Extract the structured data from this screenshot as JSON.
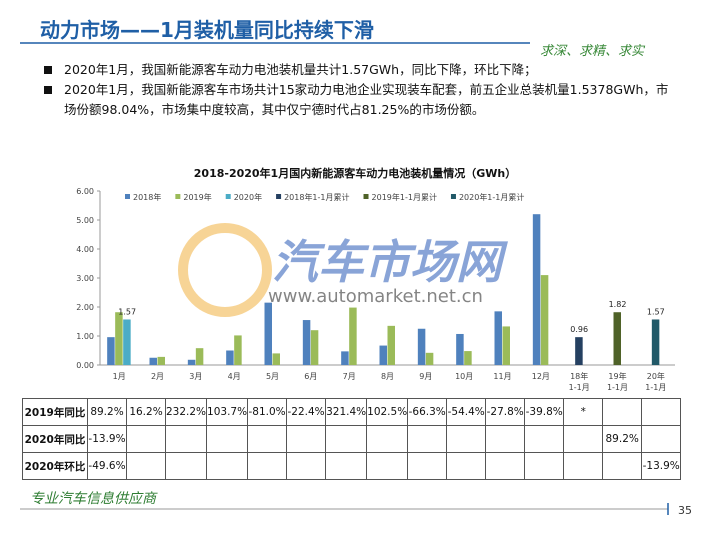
{
  "header": {
    "title": "动力市场——1月装机量同比持续下滑",
    "slogan": "求深、求精、求实"
  },
  "bullets": [
    "2020年1月，我国新能源客车动力电池装机量共计1.57GWh，同比下降，环比下降；",
    "2020年1月，我国新能源客车市场共计15家动力电池企业实现装车配套，前五企业总装机量1.5378GWh，市场份额98.04%，市场集中度较高，其中仅宁德时代占81.25%的市场份额。"
  ],
  "watermark": {
    "name": "汽车市场网",
    "url": "www.automarket.net.cn"
  },
  "chart_data": {
    "type": "bar",
    "title": "2018-2020年1月国内新能源客车动力电池装机量情况（GWh）",
    "categories": [
      "1月",
      "2月",
      "3月",
      "4月",
      "5月",
      "6月",
      "7月",
      "8月",
      "9月",
      "10月",
      "11月",
      "12月",
      "18年\n1-1月",
      "19年\n1-1月",
      "20年\n1-1月"
    ],
    "series": [
      {
        "name": "2018年",
        "color": "#4f81bd",
        "values": [
          0.96,
          0.25,
          0.18,
          0.5,
          2.15,
          1.55,
          0.47,
          0.67,
          1.25,
          1.07,
          1.85,
          5.2,
          null,
          null,
          null
        ]
      },
      {
        "name": "2019年",
        "color": "#9bbb59",
        "values": [
          1.82,
          0.28,
          0.58,
          1.02,
          0.4,
          1.2,
          1.98,
          1.35,
          0.42,
          0.48,
          1.33,
          3.1,
          null,
          null,
          null
        ]
      },
      {
        "name": "2020年",
        "color": "#4bacc6",
        "data_labels": true,
        "values": [
          1.57,
          null,
          null,
          null,
          null,
          null,
          null,
          null,
          null,
          null,
          null,
          null,
          null,
          null,
          null
        ]
      },
      {
        "name": "2018年1-1月累计",
        "color": "#254061",
        "data_labels": true,
        "values": [
          null,
          null,
          null,
          null,
          null,
          null,
          null,
          null,
          null,
          null,
          null,
          null,
          0.96,
          null,
          null
        ]
      },
      {
        "name": "2019年1-1月累计",
        "color": "#4f6228",
        "data_labels": true,
        "values": [
          null,
          null,
          null,
          null,
          null,
          null,
          null,
          null,
          null,
          null,
          null,
          null,
          null,
          1.82,
          null
        ]
      },
      {
        "name": "2020年1-1月累计",
        "color": "#215968",
        "data_labels": true,
        "values": [
          null,
          null,
          null,
          null,
          null,
          null,
          null,
          null,
          null,
          null,
          null,
          null,
          null,
          null,
          1.57
        ]
      }
    ],
    "ylim": [
      0,
      6
    ],
    "yticks": [
      {
        "value": 0,
        "label": "0.00"
      },
      {
        "value": 1,
        "label": "1.00"
      },
      {
        "value": 2,
        "label": "2.00"
      },
      {
        "value": 3,
        "label": "3.00"
      },
      {
        "value": 4,
        "label": "4.00"
      },
      {
        "value": 5,
        "label": "5.00"
      },
      {
        "value": 6,
        "label": "6.00"
      }
    ],
    "legend": "top"
  },
  "table": {
    "rows": [
      [
        "2019年同比",
        "89.2%",
        "16.2%",
        "232.2%",
        "103.7%",
        "-81.0%",
        "-22.4%",
        "321.4%",
        "102.5%",
        "-66.3%",
        "-54.4%",
        "-27.8%",
        "-39.8%",
        "*",
        null,
        null
      ],
      [
        "2020年同比",
        "-13.9%",
        null,
        null,
        null,
        null,
        null,
        null,
        null,
        null,
        null,
        null,
        null,
        null,
        "89.2%",
        null
      ],
      [
        "2020年环比",
        "-49.6%",
        null,
        null,
        null,
        null,
        null,
        null,
        null,
        null,
        null,
        null,
        null,
        null,
        null,
        "-13.9%"
      ]
    ]
  },
  "footer": {
    "text": "专业汽车信息供应商",
    "page": "35"
  }
}
